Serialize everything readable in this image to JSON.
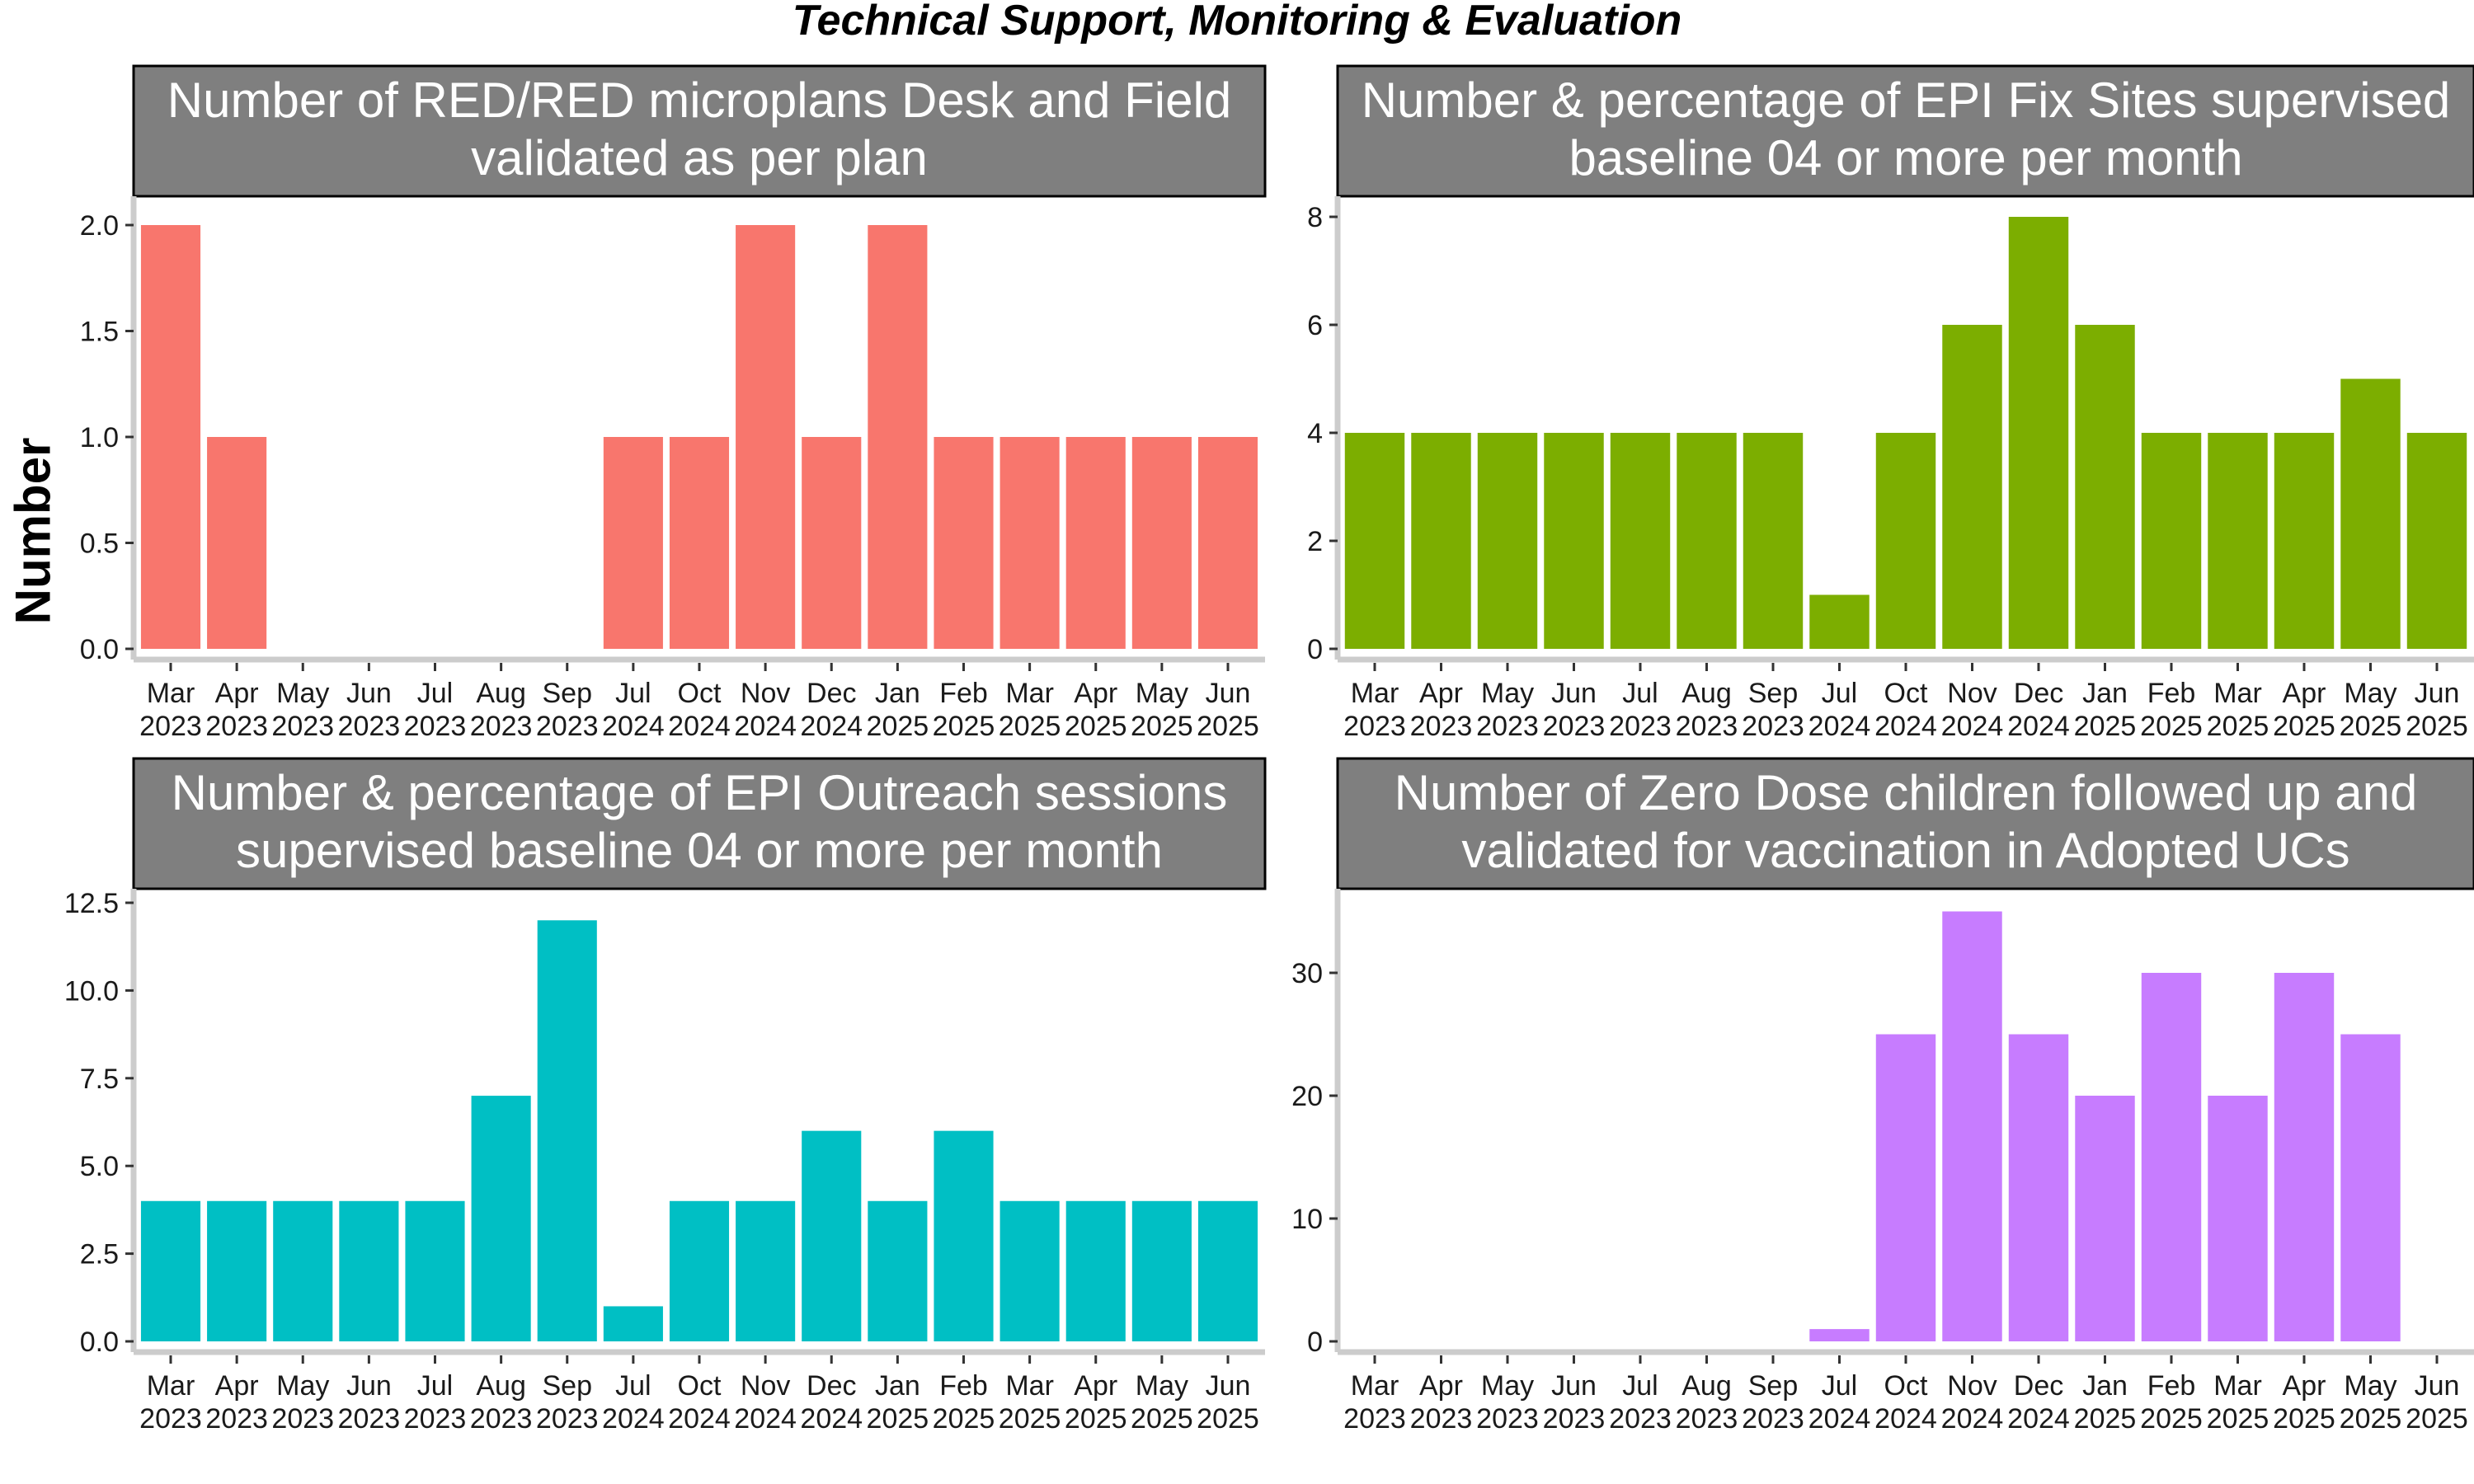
{
  "title": "Technical Support, Monitoring & Evaluation",
  "ylabel": "Number",
  "colors": {
    "strip_bg": "#7f7f7f",
    "strip_text": "#ffffff",
    "panel_border": "#000000",
    "axis_line": "#cccccc"
  },
  "chart_data": [
    {
      "type": "bar",
      "title": "Number of RED/RED microplans Desk and Field validated as per plan",
      "title_lines": [
        "Number of RED/RED microplans Desk and Field",
        "validated as per plan"
      ],
      "color": "#F8766D",
      "categories": [
        "Mar\n2023",
        "Apr\n2023",
        "May\n2023",
        "Jun\n2023",
        "Jul\n2023",
        "Aug\n2023",
        "Sep\n2023",
        "Jul\n2024",
        "Oct\n2024",
        "Nov\n2024",
        "Dec\n2024",
        "Jan\n2025",
        "Feb\n2025",
        "Mar\n2025",
        "Apr\n2025",
        "May\n2025",
        "Jun\n2025"
      ],
      "values": [
        2,
        1,
        null,
        null,
        null,
        null,
        null,
        1,
        1,
        2,
        1,
        2,
        1,
        1,
        1,
        1,
        1
      ],
      "ylim": [
        0,
        2.0
      ],
      "yticks": [
        "0.0",
        "0.5",
        "1.0",
        "1.5",
        "2.0"
      ],
      "ytick_values": [
        0,
        0.5,
        1.0,
        1.5,
        2.0
      ]
    },
    {
      "type": "bar",
      "title": "Number & percentage of EPI Fix Sites supervised baseline 04 or more per month",
      "title_lines": [
        "Number & percentage of EPI Fix Sites supervised",
        "baseline 04 or more per month"
      ],
      "color": "#7CAE00",
      "categories": [
        "Mar\n2023",
        "Apr\n2023",
        "May\n2023",
        "Jun\n2023",
        "Jul\n2023",
        "Aug\n2023",
        "Sep\n2023",
        "Jul\n2024",
        "Oct\n2024",
        "Nov\n2024",
        "Dec\n2024",
        "Jan\n2025",
        "Feb\n2025",
        "Mar\n2025",
        "Apr\n2025",
        "May\n2025",
        "Jun\n2025"
      ],
      "values": [
        4,
        4,
        4,
        4,
        4,
        4,
        4,
        1,
        4,
        6,
        8,
        6,
        4,
        4,
        4,
        5,
        4
      ],
      "ylim": [
        0,
        8
      ],
      "yticks": [
        "0",
        "2",
        "4",
        "6",
        "8"
      ],
      "ytick_values": [
        0,
        2,
        4,
        6,
        8
      ]
    },
    {
      "type": "bar",
      "title": "Number & percentage of EPI Outreach sessions supervised baseline 04 or more per month",
      "title_lines": [
        "Number & percentage of EPI Outreach sessions",
        "supervised baseline 04 or more per month"
      ],
      "color": "#00BFC4",
      "categories": [
        "Mar\n2023",
        "Apr\n2023",
        "May\n2023",
        "Jun\n2023",
        "Jul\n2023",
        "Aug\n2023",
        "Sep\n2023",
        "Jul\n2024",
        "Oct\n2024",
        "Nov\n2024",
        "Dec\n2024",
        "Jan\n2025",
        "Feb\n2025",
        "Mar\n2025",
        "Apr\n2025",
        "May\n2025",
        "Jun\n2025"
      ],
      "values": [
        4,
        4,
        4,
        4,
        4,
        7,
        12,
        1,
        4,
        4,
        6,
        4,
        6,
        4,
        4,
        4,
        4
      ],
      "ylim": [
        0,
        12.5
      ],
      "yticks": [
        "0.0",
        "2.5",
        "5.0",
        "7.5",
        "10.0",
        "12.5"
      ],
      "ytick_values": [
        0,
        2.5,
        5.0,
        7.5,
        10.0,
        12.5
      ]
    },
    {
      "type": "bar",
      "title": "Number of Zero Dose children followed up and validated for vaccination in Adopted UCs",
      "title_lines": [
        "Number of Zero Dose children followed up and",
        "validated for vaccination in Adopted UCs"
      ],
      "color": "#C77CFF",
      "categories": [
        "Mar\n2023",
        "Apr\n2023",
        "May\n2023",
        "Jun\n2023",
        "Jul\n2023",
        "Aug\n2023",
        "Sep\n2023",
        "Jul\n2024",
        "Oct\n2024",
        "Nov\n2024",
        "Dec\n2024",
        "Jan\n2025",
        "Feb\n2025",
        "Mar\n2025",
        "Apr\n2025",
        "May\n2025",
        "Jun\n2025"
      ],
      "values": [
        null,
        null,
        null,
        null,
        null,
        null,
        null,
        1,
        25,
        35,
        25,
        20,
        30,
        20,
        30,
        25,
        null
      ],
      "ylim": [
        0,
        35
      ],
      "yticks": [
        "0",
        "10",
        "20",
        "30"
      ],
      "ytick_values": [
        0,
        10,
        20,
        30
      ]
    }
  ]
}
